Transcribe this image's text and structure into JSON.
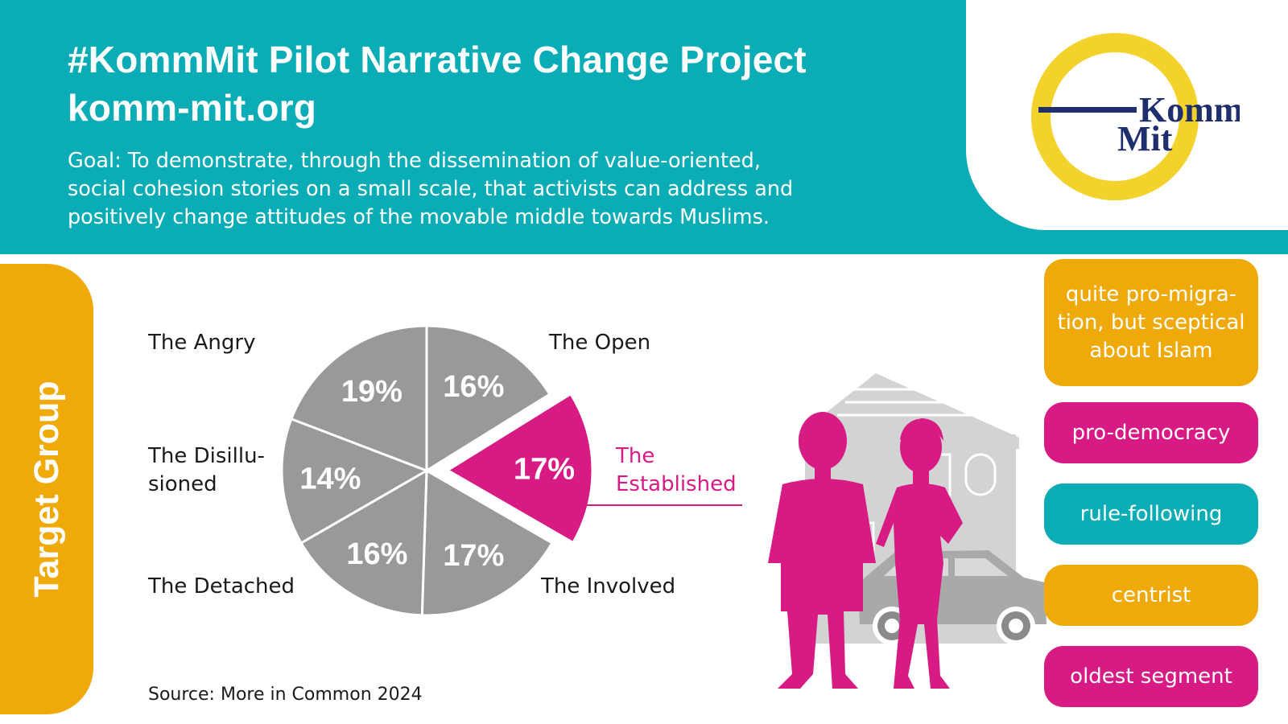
{
  "header": {
    "title_line1": "#KommMit Pilot Narrative Change Project",
    "title_line2": "komm-mit.org",
    "goal_line1": "Goal: To demonstrate, through the dissemination of value-oriented,",
    "goal_line2": "social cohesion stories on a small scale, that activists can address and",
    "goal_line3": "positively change attitudes of the movable middle towards Muslims."
  },
  "logo": {
    "line1": "Komm",
    "line2": "Mit"
  },
  "sidebar": {
    "label": "Target Group"
  },
  "chart_data": {
    "type": "pie",
    "title": "",
    "unit": "%",
    "slices": [
      {
        "name": "The Open",
        "value": 16,
        "label": "16%",
        "highlight": false
      },
      {
        "name": "The Established",
        "value": 17,
        "label": "17%",
        "highlight": true
      },
      {
        "name": "The Involved",
        "value": 17,
        "label": "17%",
        "highlight": false
      },
      {
        "name": "The Detached",
        "value": 16,
        "label": "16%",
        "highlight": false
      },
      {
        "name": "The Disillusioned",
        "value": 14,
        "label": "14%",
        "highlight": false
      },
      {
        "name": "The Angry",
        "value": 19,
        "label": "19%",
        "highlight": false
      }
    ],
    "category_labels": {
      "angry": "The Angry",
      "open": "The Open",
      "disillusioned_line1": "The Disillu-",
      "disillusioned_line2": "sioned",
      "established_line1": "The",
      "established_line2": "Established",
      "detached": "The Detached",
      "involved": "The Involved"
    },
    "colors": {
      "base": "#999999",
      "highlight": "#d71a84",
      "separator": "#ffffff",
      "label": "#ffffff"
    },
    "source": "Source: More in Common 2024"
  },
  "attributes": [
    {
      "lines": [
        "quite pro-migra-",
        "tion, but sceptical",
        "about Islam"
      ],
      "color": "gold"
    },
    {
      "lines": [
        "pro-democracy"
      ],
      "color": "pink"
    },
    {
      "lines": [
        "rule-following"
      ],
      "color": "teal"
    },
    {
      "lines": [
        "centrist"
      ],
      "color": "gold"
    },
    {
      "lines": [
        "oldest segment"
      ],
      "color": "pink"
    }
  ],
  "colors": {
    "teal": "#0aacb6",
    "gold": "#efaa0a",
    "pink": "#d71a84",
    "gray": "#999999",
    "navy": "#1f2f6e",
    "logo_ring": "#f4d22c"
  }
}
